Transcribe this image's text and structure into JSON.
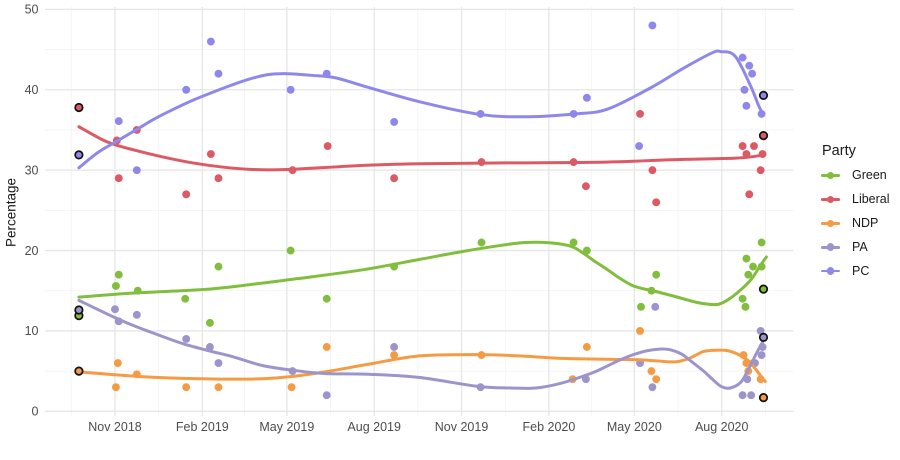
{
  "chart_data": {
    "type": "scatter",
    "title": "",
    "xlabel": "",
    "ylabel": "Percentage",
    "ylim": [
      0,
      50
    ],
    "grid": true,
    "legend_position": "right",
    "legend_title": "Party",
    "x_axis": {
      "epoch": "2018-09-24",
      "major_ticks": [
        {
          "date": "2018-11-01",
          "label": "Nov 2018"
        },
        {
          "date": "2019-02-01",
          "label": "Feb 2019"
        },
        {
          "date": "2019-05-01",
          "label": "May 2019"
        },
        {
          "date": "2019-08-01",
          "label": "Aug 2019"
        },
        {
          "date": "2019-11-01",
          "label": "Nov 2019"
        },
        {
          "date": "2020-02-01",
          "label": "Feb 2020"
        },
        {
          "date": "2020-05-01",
          "label": "May 2020"
        },
        {
          "date": "2020-08-01",
          "label": "Aug 2020"
        }
      ]
    },
    "y_axis": {
      "major_ticks": [
        0,
        10,
        20,
        30,
        40,
        50
      ],
      "minor_ticks": [
        5,
        15,
        25,
        35,
        45
      ]
    },
    "series": [
      {
        "name": "Green",
        "color": "#82be3e",
        "polls": [
          [
            "2018-11-02",
            15.6
          ],
          [
            "2018-11-05",
            17
          ],
          [
            "2018-11-25",
            15
          ],
          [
            "2019-01-14",
            14
          ],
          [
            "2019-02-09",
            11
          ],
          [
            "2019-02-18",
            18
          ],
          [
            "2019-05-05",
            20
          ],
          [
            "2019-06-12",
            14
          ],
          [
            "2019-08-22",
            18
          ],
          [
            "2019-11-22",
            21
          ],
          [
            "2020-02-27",
            21
          ],
          [
            "2020-03-12",
            20
          ],
          [
            "2020-05-08",
            13
          ],
          [
            "2020-05-19",
            15
          ],
          [
            "2020-05-24",
            17
          ],
          [
            "2020-08-23",
            14
          ],
          [
            "2020-08-26",
            13
          ],
          [
            "2020-08-27",
            19
          ],
          [
            "2020-08-29",
            17
          ],
          [
            "2020-09-03",
            18
          ],
          [
            "2020-09-12",
            18
          ],
          [
            "2020-09-12",
            21
          ]
        ],
        "elections": [
          [
            "2018-09-24",
            11.9
          ],
          [
            "2020-09-14",
            15.2
          ]
        ],
        "smooth": [
          [
            0,
            14.2
          ],
          [
            56,
            14.7
          ],
          [
            125,
            15.1
          ],
          [
            162,
            15.5
          ],
          [
            230,
            16.5
          ],
          [
            299,
            17.6
          ],
          [
            359,
            18.9
          ],
          [
            405,
            19.9
          ],
          [
            445,
            20.65
          ],
          [
            470,
            21.0
          ],
          [
            497,
            20.95
          ],
          [
            519,
            20.5
          ],
          [
            532,
            19.6
          ],
          [
            544,
            18.6
          ],
          [
            557,
            17.6
          ],
          [
            569,
            16.6
          ],
          [
            582,
            15.7
          ],
          [
            594,
            15.25
          ],
          [
            606,
            14.95
          ],
          [
            621,
            14.5
          ],
          [
            635,
            14.05
          ],
          [
            649,
            13.6
          ],
          [
            661,
            13.35
          ],
          [
            673,
            13.3
          ],
          [
            684,
            13.9
          ],
          [
            697,
            15.1
          ],
          [
            708,
            16.4
          ],
          [
            717,
            18.0
          ],
          [
            724,
            19.2
          ]
        ]
      },
      {
        "name": "Liberal",
        "color": "#dc5a64",
        "polls": [
          [
            "2018-11-03",
            33.7
          ],
          [
            "2018-11-05",
            29
          ],
          [
            "2018-11-24",
            35
          ],
          [
            "2019-01-15",
            27
          ],
          [
            "2019-02-10",
            32
          ],
          [
            "2019-02-18",
            29
          ],
          [
            "2019-05-07",
            30
          ],
          [
            "2019-06-13",
            33
          ],
          [
            "2019-08-22",
            29
          ],
          [
            "2019-11-22",
            31
          ],
          [
            "2020-02-27",
            31
          ],
          [
            "2020-03-11",
            28
          ],
          [
            "2020-05-07",
            37
          ],
          [
            "2020-05-20",
            30
          ],
          [
            "2020-05-24",
            26
          ],
          [
            "2020-08-23",
            33
          ],
          [
            "2020-08-27",
            32
          ],
          [
            "2020-08-30",
            27
          ],
          [
            "2020-09-04",
            33
          ],
          [
            "2020-09-11",
            30
          ],
          [
            "2020-09-13",
            32
          ]
        ],
        "elections": [
          [
            "2018-09-24",
            37.8
          ],
          [
            "2020-09-14",
            34.3
          ]
        ],
        "smooth": [
          [
            0,
            35.4
          ],
          [
            30,
            33.5
          ],
          [
            60,
            32.45
          ],
          [
            90,
            31.6
          ],
          [
            120,
            30.9
          ],
          [
            150,
            30.4
          ],
          [
            180,
            30.1
          ],
          [
            210,
            30.05
          ],
          [
            240,
            30.2
          ],
          [
            270,
            30.4
          ],
          [
            300,
            30.6
          ],
          [
            360,
            30.8
          ],
          [
            450,
            30.9
          ],
          [
            555,
            31.0
          ],
          [
            624,
            31.3
          ],
          [
            692,
            31.5
          ],
          [
            717,
            31.8
          ]
        ]
      },
      {
        "name": "NDP",
        "color": "#f49b44",
        "polls": [
          [
            "2018-11-02",
            3
          ],
          [
            "2018-11-04",
            6
          ],
          [
            "2018-11-24",
            4.6
          ],
          [
            "2019-01-15",
            3
          ],
          [
            "2019-02-18",
            3
          ],
          [
            "2019-05-06",
            3
          ],
          [
            "2019-06-12",
            8
          ],
          [
            "2019-08-22",
            7
          ],
          [
            "2019-11-22",
            7
          ],
          [
            "2020-02-26",
            4
          ],
          [
            "2020-03-12",
            8
          ],
          [
            "2020-05-07",
            10
          ],
          [
            "2020-05-19",
            5
          ],
          [
            "2020-05-24",
            4
          ],
          [
            "2020-08-24",
            7
          ],
          [
            "2020-08-27",
            6
          ],
          [
            "2020-08-29",
            5
          ],
          [
            "2020-09-03",
            6
          ],
          [
            "2020-09-11",
            4
          ]
        ],
        "elections": [
          [
            "2018-09-24",
            5.0
          ],
          [
            "2020-09-14",
            1.7
          ]
        ],
        "smooth": [
          [
            0,
            4.9
          ],
          [
            61,
            4.35
          ],
          [
            110,
            4.1
          ],
          [
            162,
            4.0
          ],
          [
            193,
            4.05
          ],
          [
            226,
            4.35
          ],
          [
            259,
            4.9
          ],
          [
            307,
            5.9
          ],
          [
            359,
            6.9
          ],
          [
            424,
            7.05
          ],
          [
            470,
            6.85
          ],
          [
            505,
            6.6
          ],
          [
            540,
            6.5
          ],
          [
            570,
            6.45
          ],
          [
            592,
            6.4
          ],
          [
            611,
            6.25
          ],
          [
            628,
            6.15
          ],
          [
            641,
            6.5
          ],
          [
            650,
            7.0
          ],
          [
            658,
            7.45
          ],
          [
            670,
            7.6
          ],
          [
            683,
            7.55
          ],
          [
            694,
            7.1
          ],
          [
            705,
            6.3
          ],
          [
            713,
            5.2
          ],
          [
            720,
            4.1
          ],
          [
            723,
            3.7
          ]
        ]
      },
      {
        "name": "PA",
        "color": "#9c95cb",
        "polls": [
          [
            "2018-11-01",
            12.7
          ],
          [
            "2018-11-05",
            11.2
          ],
          [
            "2018-11-24",
            12
          ],
          [
            "2019-01-15",
            9
          ],
          [
            "2019-02-09",
            8
          ],
          [
            "2019-02-18",
            6
          ],
          [
            "2019-05-07",
            5
          ],
          [
            "2019-06-12",
            2
          ],
          [
            "2019-08-22",
            8
          ],
          [
            "2019-11-21",
            3
          ],
          [
            "2020-03-11",
            4
          ],
          [
            "2020-05-07",
            6
          ],
          [
            "2020-05-20",
            3
          ],
          [
            "2020-05-23",
            13
          ],
          [
            "2020-08-23",
            2
          ],
          [
            "2020-08-28",
            4
          ],
          [
            "2020-09-01",
            2
          ],
          [
            "2020-09-05",
            6
          ],
          [
            "2020-09-11",
            10
          ],
          [
            "2020-09-12",
            7
          ],
          [
            "2020-09-13",
            8
          ]
        ],
        "elections": [
          [
            "2018-09-24",
            12.6
          ],
          [
            "2020-09-14",
            9.2
          ]
        ],
        "smooth": [
          [
            0,
            13.8
          ],
          [
            38,
            11.65
          ],
          [
            61,
            10.5
          ],
          [
            86,
            9.4
          ],
          [
            110,
            8.4
          ],
          [
            138,
            7.5
          ],
          [
            162,
            6.8
          ],
          [
            193,
            5.7
          ],
          [
            226,
            5.1
          ],
          [
            259,
            4.7
          ],
          [
            307,
            4.6
          ],
          [
            359,
            4.2
          ],
          [
            420,
            3.1
          ],
          [
            455,
            2.9
          ],
          [
            481,
            2.9
          ],
          [
            508,
            3.5
          ],
          [
            540,
            4.75
          ],
          [
            555,
            5.55
          ],
          [
            569,
            6.35
          ],
          [
            584,
            7.05
          ],
          [
            599,
            7.55
          ],
          [
            612,
            7.74
          ],
          [
            623,
            7.65
          ],
          [
            635,
            7.1
          ],
          [
            645,
            6.2
          ],
          [
            658,
            5.0
          ],
          [
            668,
            3.9
          ],
          [
            677,
            3.05
          ],
          [
            686,
            2.9
          ],
          [
            697,
            3.6
          ],
          [
            705,
            5.2
          ],
          [
            714,
            7.3
          ],
          [
            720,
            8.6
          ]
        ]
      },
      {
        "name": "PC",
        "color": "#8f88ec",
        "polls": [
          [
            "2018-11-05",
            36.1
          ],
          [
            "2018-11-24",
            30
          ],
          [
            "2019-01-15",
            40
          ],
          [
            "2019-02-10",
            46
          ],
          [
            "2019-02-18",
            42
          ],
          [
            "2019-05-05",
            40
          ],
          [
            "2019-06-12",
            42
          ],
          [
            "2019-08-22",
            36
          ],
          [
            "2019-11-21",
            37
          ],
          [
            "2020-02-27",
            37
          ],
          [
            "2020-03-12",
            39
          ],
          [
            "2020-05-06",
            33
          ],
          [
            "2020-05-20",
            48
          ],
          [
            "2020-08-23",
            44
          ],
          [
            "2020-08-25",
            40
          ],
          [
            "2020-08-27",
            38
          ],
          [
            "2020-08-30",
            43
          ],
          [
            "2020-09-02",
            42
          ],
          [
            "2020-09-12",
            37
          ]
        ],
        "elections": [
          [
            "2018-09-24",
            31.9
          ],
          [
            "2020-09-14",
            39.3
          ]
        ],
        "smooth": [
          [
            0,
            30.3
          ],
          [
            20,
            32.2
          ],
          [
            40,
            33.6
          ],
          [
            60,
            35.0
          ],
          [
            80,
            36.4
          ],
          [
            100,
            37.6
          ],
          [
            120,
            38.7
          ],
          [
            140,
            39.65
          ],
          [
            160,
            40.55
          ],
          [
            180,
            41.35
          ],
          [
            200,
            41.9
          ],
          [
            220,
            42.0
          ],
          [
            245,
            41.8
          ],
          [
            270,
            41.5
          ],
          [
            299,
            40.5
          ],
          [
            359,
            38.5
          ],
          [
            424,
            36.9
          ],
          [
            474,
            36.65
          ],
          [
            523,
            37.0
          ],
          [
            557,
            37.6
          ],
          [
            603,
            40.3
          ],
          [
            637,
            42.7
          ],
          [
            667,
            44.6
          ],
          [
            676,
            44.75
          ],
          [
            691,
            44.2
          ],
          [
            707,
            40.6
          ],
          [
            716,
            38.0
          ],
          [
            721,
            36.9
          ]
        ]
      }
    ],
    "style": {
      "grid_major_color": "#e6e6e6",
      "grid_minor_color": "#f2f2f2",
      "axis_text_color": "#4d4d4d",
      "point_radius": 3.95,
      "election_point_radius": 3.75,
      "election_stroke": "#111111",
      "line_width": 3
    }
  },
  "legend": {
    "title": "Party"
  }
}
